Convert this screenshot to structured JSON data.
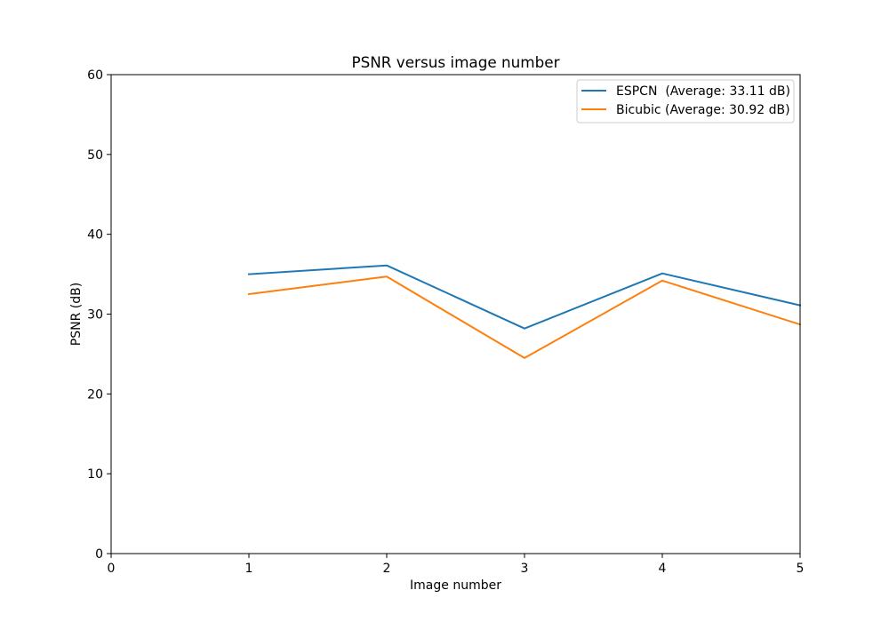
{
  "chart_data": {
    "type": "line",
    "title": "PSNR versus image number",
    "xlabel": "Image number",
    "ylabel": "PSNR (dB)",
    "xlim": [
      0,
      5
    ],
    "ylim": [
      0,
      60
    ],
    "xticks": [
      0,
      1,
      2,
      3,
      4,
      5
    ],
    "yticks": [
      0,
      10,
      20,
      30,
      40,
      50,
      60
    ],
    "grid": false,
    "legend_position": "top-right",
    "x": [
      1,
      2,
      3,
      4,
      5
    ],
    "series": [
      {
        "name": "ESPCN  (Average: 33.11 dB)",
        "color": "#1f77b4",
        "values": [
          35.0,
          36.1,
          28.2,
          35.1,
          31.1
        ]
      },
      {
        "name": "Bicubic (Average: 30.92 dB)",
        "color": "#ff7f0e",
        "values": [
          32.5,
          34.7,
          24.5,
          34.2,
          28.7
        ]
      }
    ]
  }
}
